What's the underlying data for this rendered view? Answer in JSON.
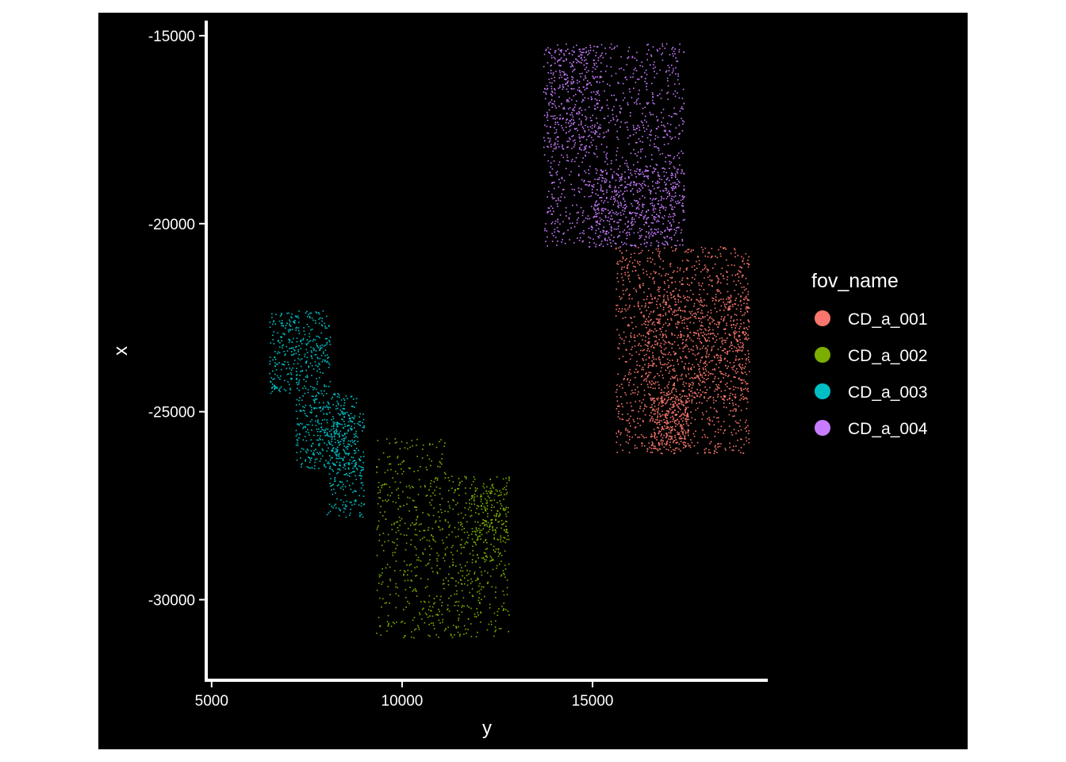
{
  "chart_data": {
    "type": "scatter",
    "xlabel": "y",
    "ylabel": "x",
    "xlim": [
      4900,
      19600
    ],
    "ylim": [
      -32100,
      -14600
    ],
    "x_ticks": [
      5000,
      10000,
      15000
    ],
    "y_ticks": [
      -15000,
      -20000,
      -25000,
      -30000
    ],
    "x_tick_labels": [
      "5000",
      "10000",
      "15000"
    ],
    "y_tick_labels": [
      "-15000",
      "-20000",
      "-25000",
      "-30000"
    ],
    "background": "#000000",
    "grid": false,
    "legend": {
      "title": "fov_name",
      "position": "right"
    },
    "series": [
      {
        "name": "CD_a_001",
        "color": "#F8766D",
        "regions": [
          {
            "y": [
              15600,
              19100
            ],
            "x": [
              -26100,
              -20600
            ],
            "density": 1400
          },
          {
            "y": [
              16300,
              19100
            ],
            "x": [
              -24700,
              -21900
            ],
            "density": 500
          },
          {
            "y": [
              16500,
              17500
            ],
            "x": [
              -26000,
              -24600
            ],
            "density": 250
          }
        ]
      },
      {
        "name": "CD_a_002",
        "color": "#7CAE00",
        "regions": [
          {
            "y": [
              9300,
              11200
            ],
            "x": [
              -31000,
              -25700
            ],
            "density": 450
          },
          {
            "y": [
              11200,
              12800
            ],
            "x": [
              -31000,
              -26700
            ],
            "density": 380
          },
          {
            "y": [
              11800,
              12800
            ],
            "x": [
              -29000,
              -27000
            ],
            "density": 150
          }
        ]
      },
      {
        "name": "CD_a_003",
        "color": "#00BFC4",
        "regions": [
          {
            "y": [
              6500,
              8100
            ],
            "x": [
              -24500,
              -22300
            ],
            "density": 380
          },
          {
            "y": [
              7200,
              8800
            ],
            "x": [
              -26500,
              -24500
            ],
            "density": 380
          },
          {
            "y": [
              8000,
              9000
            ],
            "x": [
              -27800,
              -25000
            ],
            "density": 250
          }
        ]
      },
      {
        "name": "CD_a_004",
        "color": "#C77CFF",
        "regions": [
          {
            "y": [
              13700,
              17400
            ],
            "x": [
              -20600,
              -15200
            ],
            "density": 1100
          },
          {
            "y": [
              15000,
              17400
            ],
            "x": [
              -20600,
              -18500
            ],
            "density": 400
          },
          {
            "y": [
              13700,
              15200
            ],
            "x": [
              -18000,
              -15200
            ],
            "density": 250
          }
        ]
      }
    ]
  }
}
